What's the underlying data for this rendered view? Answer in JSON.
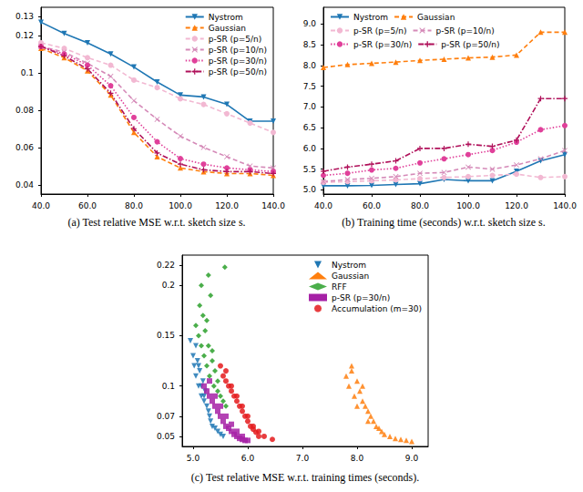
{
  "chart_data": [
    {
      "type": "line",
      "title": "(a) Test relative MSE w.r.t. sketch size s.",
      "x": [
        40,
        50,
        60,
        70,
        80,
        90,
        100,
        110,
        120,
        130,
        140
      ],
      "xlim": [
        40,
        140
      ],
      "xticks": [
        {
          "value": 40,
          "label": "40.0"
        },
        {
          "value": 60,
          "label": "60.0"
        },
        {
          "value": 80,
          "label": "80.0"
        },
        {
          "value": 100,
          "label": "100.0"
        },
        {
          "value": 120,
          "label": "120.0"
        },
        {
          "value": 140,
          "label": "140.0"
        }
      ],
      "ylim": [
        0.035,
        0.135
      ],
      "yticks": [
        0.04,
        0.06,
        0.08,
        0.1,
        0.12,
        0.13
      ],
      "legend": "upper right",
      "grid": false,
      "series": [
        {
          "name": "Nystrom",
          "color": "#1f77b4",
          "marker": "triangle-down",
          "line_style": "solid",
          "values": [
            0.127,
            0.121,
            0.116,
            0.11,
            0.103,
            0.095,
            0.088,
            0.087,
            0.083,
            0.074,
            0.074
          ]
        },
        {
          "name": "Gaussian",
          "color": "#ff7f0e",
          "marker": "triangle",
          "line_style": "dashed",
          "values": [
            0.113,
            0.108,
            0.101,
            0.088,
            0.068,
            0.055,
            0.049,
            0.047,
            0.046,
            0.046,
            0.045
          ]
        },
        {
          "name": "p-SR (p=5/n)",
          "color": "#f2b8d2",
          "marker": "circle",
          "line_style": "dashed",
          "values": [
            0.116,
            0.113,
            0.108,
            0.104,
            0.096,
            0.092,
            0.086,
            0.083,
            0.078,
            0.073,
            0.068
          ]
        },
        {
          "name": "p-SR (p=10/n)",
          "color": "#d58ab8",
          "marker": "x",
          "line_style": "dashed",
          "values": [
            0.114,
            0.111,
            0.105,
            0.098,
            0.085,
            0.075,
            0.066,
            0.06,
            0.055,
            0.05,
            0.049
          ]
        },
        {
          "name": "p-SR (p=30/n)",
          "color": "#e0409a",
          "marker": "circle",
          "line_style": "dotted",
          "values": [
            0.114,
            0.11,
            0.104,
            0.093,
            0.076,
            0.063,
            0.054,
            0.051,
            0.049,
            0.048,
            0.047
          ]
        },
        {
          "name": "p-SR (p=50/n)",
          "color": "#b0105a",
          "marker": "plus",
          "line_style": "dashdot",
          "values": [
            0.114,
            0.109,
            0.102,
            0.089,
            0.07,
            0.057,
            0.051,
            0.048,
            0.047,
            0.047,
            0.046
          ]
        }
      ]
    },
    {
      "type": "line",
      "title": "(b) Training time (seconds) w.r.t. sketch size s.",
      "x": [
        40,
        50,
        60,
        70,
        80,
        90,
        100,
        110,
        120,
        130,
        140
      ],
      "xlim": [
        40,
        140
      ],
      "xticks": [
        {
          "value": 40,
          "label": "40.0"
        },
        {
          "value": 60,
          "label": "60.0"
        },
        {
          "value": 80,
          "label": "80.0"
        },
        {
          "value": 100,
          "label": "100.0"
        },
        {
          "value": 120,
          "label": "120.0"
        },
        {
          "value": 140,
          "label": "140.0"
        }
      ],
      "ylim": [
        4.9,
        9.4
      ],
      "yticks": [
        {
          "value": 5,
          "label": "5.0"
        },
        {
          "value": 5.5,
          "label": "5.5"
        },
        {
          "value": 6,
          "label": "6.0"
        },
        {
          "value": 6.5,
          "label": "6.5"
        },
        {
          "value": 7,
          "label": "7.0"
        },
        {
          "value": 7.5,
          "label": "7.5"
        },
        {
          "value": 8,
          "label": "8.0"
        },
        {
          "value": 8.5,
          "label": "8.5"
        },
        {
          "value": 9,
          "label": "9.0"
        }
      ],
      "legend": "upper left",
      "grid": false,
      "series": [
        {
          "name": "Nystrom",
          "color": "#1f77b4",
          "marker": "triangle-down",
          "line_style": "solid",
          "values": [
            5.1,
            5.1,
            5.11,
            5.13,
            5.15,
            5.25,
            5.22,
            5.22,
            5.45,
            5.7,
            5.85
          ]
        },
        {
          "name": "Gaussian",
          "color": "#ff7f0e",
          "marker": "triangle",
          "line_style": "dashed",
          "values": [
            7.95,
            8.02,
            8.05,
            8.08,
            8.12,
            8.15,
            8.18,
            8.2,
            8.25,
            8.8,
            8.8
          ]
        },
        {
          "name": "p-SR (p=5/n)",
          "color": "#f2b8d2",
          "marker": "circle",
          "line_style": "dashed",
          "values": [
            5.18,
            5.2,
            5.22,
            5.24,
            5.27,
            5.3,
            5.32,
            5.35,
            5.38,
            5.3,
            5.32
          ]
        },
        {
          "name": "p-SR (p=10/n)",
          "color": "#d58ab8",
          "marker": "x",
          "line_style": "dashed",
          "values": [
            5.2,
            5.25,
            5.28,
            5.32,
            5.4,
            5.42,
            5.55,
            5.5,
            5.6,
            5.75,
            5.95
          ]
        },
        {
          "name": "p-SR (p=30/n)",
          "color": "#e0409a",
          "marker": "circle",
          "line_style": "dotted",
          "values": [
            5.35,
            5.4,
            5.48,
            5.52,
            5.65,
            5.75,
            5.85,
            5.95,
            6.15,
            6.45,
            6.55
          ]
        },
        {
          "name": "p-SR (p=50/n)",
          "color": "#b0105a",
          "marker": "plus",
          "line_style": "dashdot",
          "values": [
            5.45,
            5.55,
            5.62,
            5.7,
            6.0,
            6.0,
            6.1,
            6.05,
            6.2,
            7.2,
            7.2
          ]
        }
      ]
    },
    {
      "type": "scatter",
      "title": "(c) Test relative MSE w.r.t. training times (seconds).",
      "xlim": [
        4.8,
        9.3
      ],
      "xticks": [
        {
          "value": 5,
          "label": "5.0"
        },
        {
          "value": 6,
          "label": "6.0"
        },
        {
          "value": 7,
          "label": "7.0"
        },
        {
          "value": 8,
          "label": "8.0"
        },
        {
          "value": 9,
          "label": "9.0"
        }
      ],
      "ylim": [
        0.04,
        0.23
      ],
      "yticks": [
        0.05,
        0.07,
        0.1,
        0.15,
        0.2,
        0.22
      ],
      "legend": "upper right",
      "grid": false,
      "series": [
        {
          "name": "Nystrom",
          "color": "#1f77b4",
          "marker": "triangle-down",
          "x": [
            4.95,
            5.0,
            5.02,
            5.05,
            5.08,
            5.1,
            5.12,
            5.15,
            5.18,
            5.2,
            5.22,
            5.25,
            5.28,
            5.3,
            5.05,
            5.1,
            5.15,
            5.2,
            5.32,
            5.35,
            5.4,
            5.45,
            5.5,
            5.55
          ],
          "values": [
            0.145,
            0.13,
            0.12,
            0.11,
            0.125,
            0.1,
            0.115,
            0.09,
            0.105,
            0.085,
            0.095,
            0.08,
            0.075,
            0.07,
            0.14,
            0.12,
            0.1,
            0.09,
            0.065,
            0.06,
            0.058,
            0.055,
            0.052,
            0.05
          ]
        },
        {
          "name": "Gaussian",
          "color": "#ff7f0e",
          "marker": "triangle",
          "x": [
            7.8,
            7.85,
            7.9,
            7.95,
            8.0,
            8.05,
            8.1,
            8.15,
            8.2,
            8.25,
            8.3,
            8.35,
            8.4,
            8.45,
            8.5,
            8.6,
            8.7,
            8.8,
            8.9,
            9.0,
            7.9,
            8.0,
            8.1,
            8.2
          ],
          "values": [
            0.11,
            0.1,
            0.115,
            0.09,
            0.105,
            0.095,
            0.085,
            0.08,
            0.075,
            0.07,
            0.065,
            0.06,
            0.058,
            0.055,
            0.052,
            0.05,
            0.048,
            0.047,
            0.046,
            0.045,
            0.12,
            0.08,
            0.1,
            0.065
          ]
        },
        {
          "name": "RFF",
          "color": "#2ca02c",
          "marker": "diamond",
          "x": [
            5.05,
            5.1,
            5.12,
            5.15,
            5.18,
            5.2,
            5.22,
            5.25,
            5.28,
            5.3,
            5.32,
            5.35,
            5.38,
            5.4,
            5.45,
            5.5,
            5.55,
            5.6,
            5.15,
            5.25,
            5.35,
            5.45,
            5.28,
            5.58
          ],
          "values": [
            0.16,
            0.15,
            0.18,
            0.14,
            0.17,
            0.13,
            0.155,
            0.12,
            0.14,
            0.11,
            0.19,
            0.125,
            0.1,
            0.115,
            0.095,
            0.09,
            0.085,
            0.08,
            0.2,
            0.165,
            0.135,
            0.105,
            0.21,
            0.218
          ]
        },
        {
          "name": "p-SR (p=30/n)",
          "color": "#a621a6",
          "marker": "square",
          "x": [
            5.2,
            5.25,
            5.3,
            5.35,
            5.4,
            5.45,
            5.5,
            5.55,
            5.6,
            5.65,
            5.7,
            5.75,
            5.8,
            5.85,
            5.9,
            5.95,
            6.0,
            5.3,
            5.4,
            5.5,
            5.6,
            5.7,
            5.8,
            5.9
          ],
          "values": [
            0.1,
            0.095,
            0.09,
            0.085,
            0.08,
            0.075,
            0.07,
            0.065,
            0.06,
            0.058,
            0.055,
            0.052,
            0.05,
            0.048,
            0.047,
            0.046,
            0.046,
            0.105,
            0.09,
            0.08,
            0.07,
            0.062,
            0.055,
            0.05
          ]
        },
        {
          "name": "Accumulation (m=30)",
          "color": "#e41a1c",
          "marker": "circle",
          "x": [
            5.5,
            5.55,
            5.6,
            5.65,
            5.7,
            5.75,
            5.8,
            5.85,
            5.9,
            5.95,
            6.0,
            6.05,
            6.1,
            6.15,
            6.2,
            5.6,
            5.7,
            5.8,
            5.9,
            6.0,
            6.1,
            6.2,
            6.3,
            6.45
          ],
          "values": [
            0.12,
            0.11,
            0.105,
            0.1,
            0.095,
            0.09,
            0.085,
            0.08,
            0.075,
            0.07,
            0.065,
            0.06,
            0.057,
            0.054,
            0.05,
            0.115,
            0.1,
            0.09,
            0.08,
            0.07,
            0.06,
            0.055,
            0.05,
            0.047
          ]
        }
      ]
    }
  ]
}
